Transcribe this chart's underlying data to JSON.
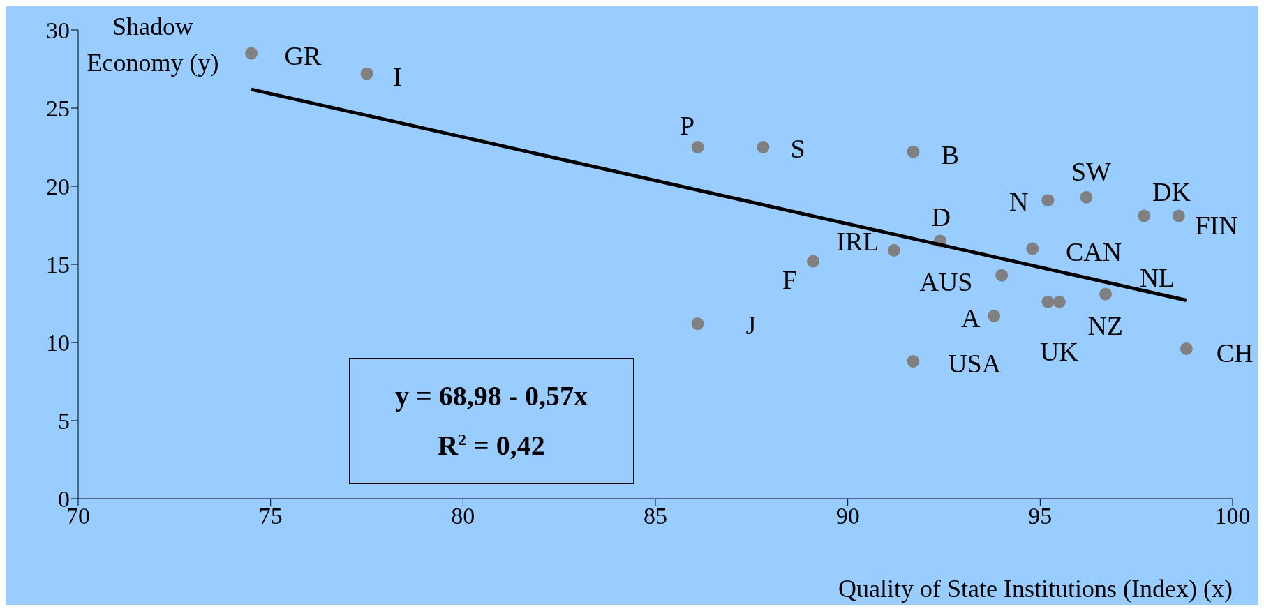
{
  "chart_data": {
    "type": "scatter",
    "xlabel": "Quality of State Institutions (Index) (x)",
    "ylabel": "Shadow Economy (y)",
    "xlim": [
      70,
      100
    ],
    "xticks": [
      70,
      75,
      80,
      85,
      90,
      95,
      100
    ],
    "ylim": [
      0,
      30
    ],
    "yticks": [
      0,
      5,
      10,
      15,
      20,
      25,
      30
    ],
    "grid": false,
    "legend": false,
    "marker": "circle",
    "series": [
      {
        "type": "scatter",
        "color": "#808080",
        "x": [
          74.5,
          77.5,
          86.1,
          87.8,
          91.7,
          95.2,
          96.2,
          97.7,
          98.6,
          92.4,
          94.8,
          91.2,
          89.1,
          94.0,
          96.7,
          95.5,
          95.2,
          93.8,
          86.1,
          91.7,
          98.8
        ],
        "values": [
          28.5,
          27.2,
          22.5,
          22.5,
          22.2,
          19.1,
          19.3,
          18.1,
          18.1,
          16.5,
          16.0,
          15.9,
          15.2,
          14.3,
          13.1,
          12.6,
          12.6,
          11.7,
          11.2,
          8.8,
          9.6
        ]
      },
      {
        "type": "line",
        "color": "#000000",
        "marker": "none",
        "x": [
          74.5,
          98.8
        ],
        "values": [
          26.2,
          12.7
        ]
      }
    ],
    "annotations": [
      {
        "text": "GR",
        "x": 74.5,
        "y": 28.5
      },
      {
        "text": "I",
        "x": 77.5,
        "y": 27.2
      },
      {
        "text": "P",
        "x": 86.1,
        "y": 22.5
      },
      {
        "text": "S",
        "x": 87.8,
        "y": 22.5
      },
      {
        "text": "B",
        "x": 91.7,
        "y": 22.2
      },
      {
        "text": "N",
        "x": 95.2,
        "y": 19.1
      },
      {
        "text": "SW",
        "x": 96.2,
        "y": 19.3
      },
      {
        "text": "DK",
        "x": 97.7,
        "y": 18.1
      },
      {
        "text": "FIN",
        "x": 98.6,
        "y": 18.1
      },
      {
        "text": "D",
        "x": 92.4,
        "y": 16.5
      },
      {
        "text": "CAN",
        "x": 94.8,
        "y": 16.0
      },
      {
        "text": "IRL",
        "x": 91.2,
        "y": 15.9
      },
      {
        "text": "F",
        "x": 89.1,
        "y": 15.2
      },
      {
        "text": "AUS",
        "x": 94.0,
        "y": 14.3
      },
      {
        "text": "NL",
        "x": 96.7,
        "y": 13.1
      },
      {
        "text": "NZ",
        "x": 95.5,
        "y": 12.6
      },
      {
        "text": "UK",
        "x": 95.2,
        "y": 12.6
      },
      {
        "text": "A",
        "x": 93.8,
        "y": 11.7
      },
      {
        "text": "J",
        "x": 86.1,
        "y": 11.2
      },
      {
        "text": "USA",
        "x": 91.7,
        "y": 8.8
      },
      {
        "text": "CH",
        "x": 98.8,
        "y": 9.6
      },
      "y = 68,98 - 0,57x",
      "R$^{2}$ = 0,42"
    ]
  }
}
